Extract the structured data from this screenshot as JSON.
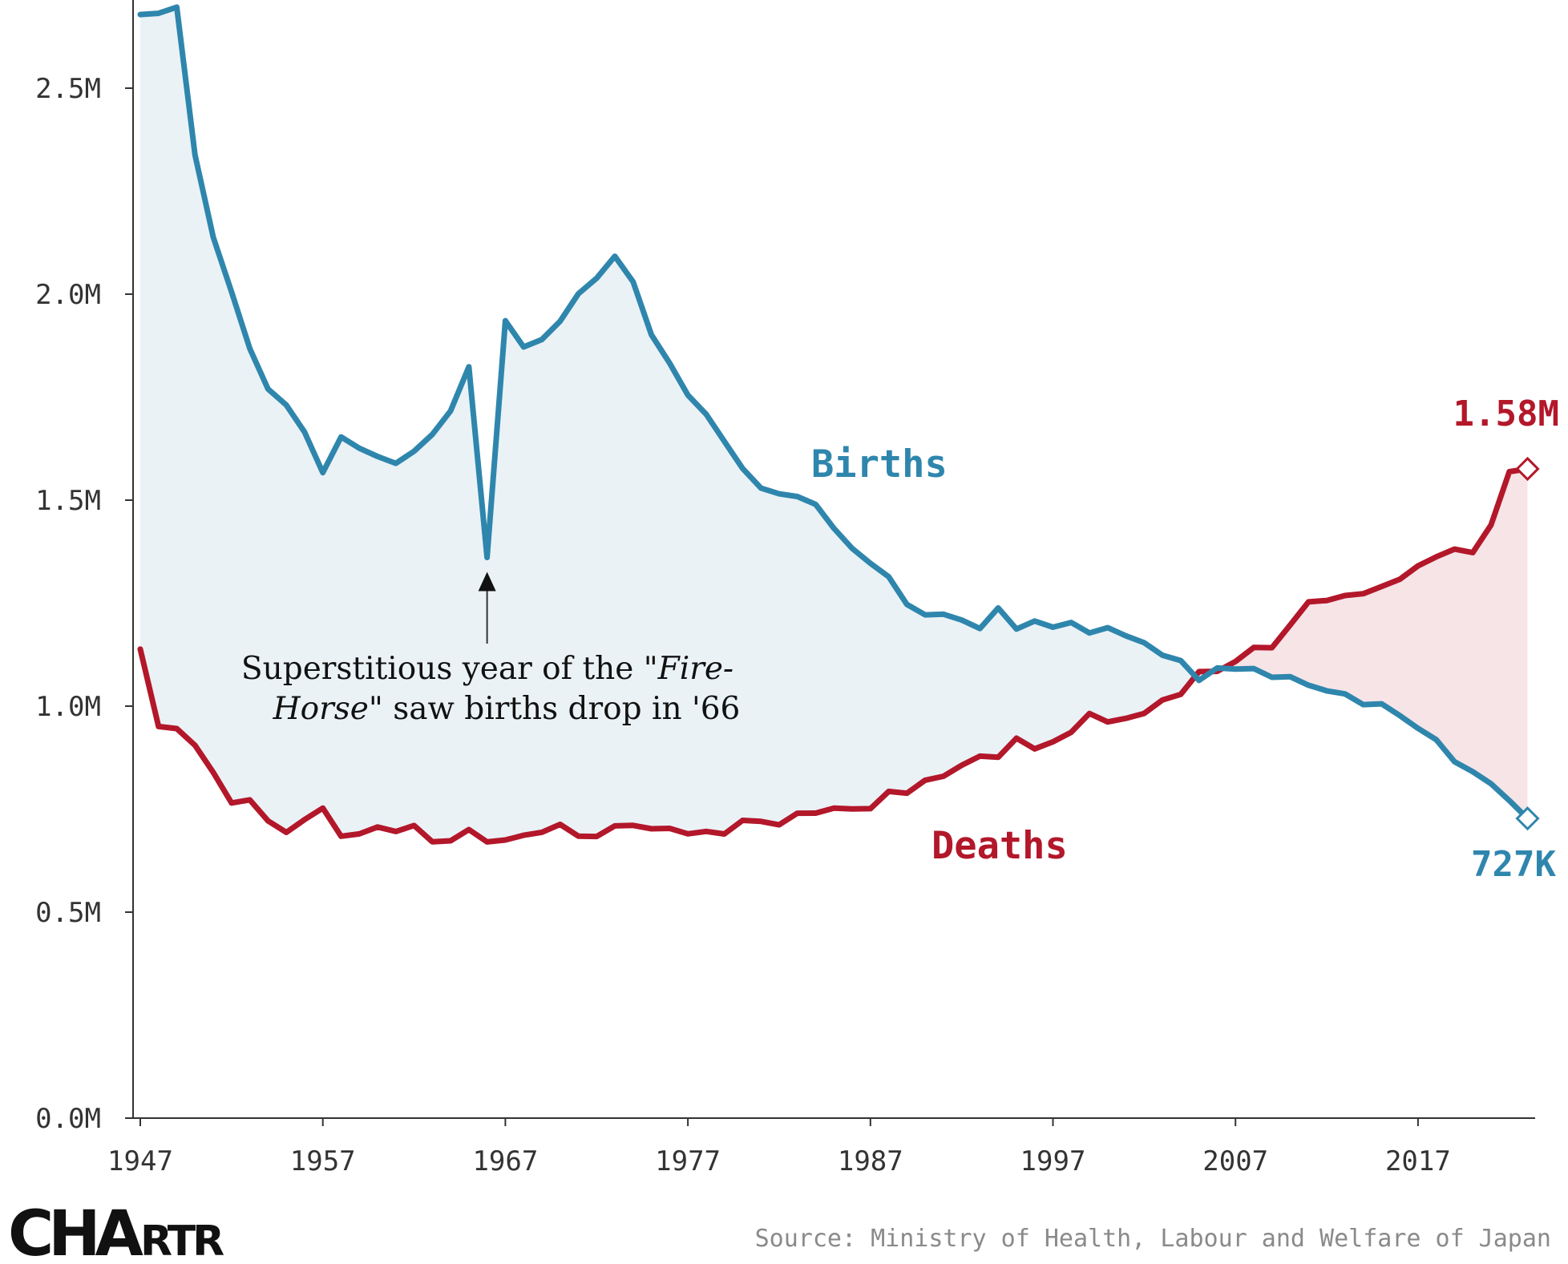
{
  "chart_data": {
    "type": "line",
    "title": "",
    "xlabel": "",
    "ylabel": "",
    "xlim": [
      1947,
      2023
    ],
    "ylim": [
      0,
      2700000
    ],
    "grid": false,
    "x_ticks": [
      1947,
      1957,
      1967,
      1977,
      1987,
      1997,
      2007,
      2017
    ],
    "x_tick_labels": [
      "1947",
      "1957",
      "1967",
      "1977",
      "1987",
      "1997",
      "2007",
      "2017"
    ],
    "y_ticks": [
      0,
      500000,
      1000000,
      1500000,
      2000000,
      2500000
    ],
    "y_tick_labels": [
      "0.0M",
      "0.5M",
      "1.0M",
      "1.5M",
      "2.0M",
      "2.5M"
    ],
    "x": [
      1947,
      1948,
      1949,
      1950,
      1951,
      1952,
      1953,
      1954,
      1955,
      1956,
      1957,
      1958,
      1959,
      1960,
      1961,
      1962,
      1963,
      1964,
      1965,
      1966,
      1967,
      1968,
      1969,
      1970,
      1971,
      1972,
      1973,
      1974,
      1975,
      1976,
      1977,
      1978,
      1979,
      1980,
      1981,
      1982,
      1983,
      1984,
      1985,
      1986,
      1987,
      1988,
      1989,
      1990,
      1991,
      1992,
      1993,
      1994,
      1995,
      1996,
      1997,
      1998,
      1999,
      2000,
      2001,
      2002,
      2003,
      2004,
      2005,
      2006,
      2007,
      2008,
      2009,
      2010,
      2011,
      2012,
      2013,
      2014,
      2015,
      2016,
      2017,
      2018,
      2019,
      2020,
      2021,
      2022,
      2023
    ],
    "series": [
      {
        "name": "Births",
        "color": "#2f86ad",
        "fill": "#eaf2f6",
        "values": [
          2678792,
          2681624,
          2696638,
          2337507,
          2137689,
          2005162,
          1868040,
          1769580,
          1730692,
          1665278,
          1566713,
          1653469,
          1626088,
          1606041,
          1589372,
          1618616,
          1659521,
          1716761,
          1823697,
          1360974,
          1935647,
          1871839,
          1889815,
          1934239,
          2000973,
          2038682,
          2091983,
          2029989,
          1901440,
          1832617,
          1755100,
          1708643,
          1642580,
          1576889,
          1529455,
          1515392,
          1508687,
          1489780,
          1431577,
          1382946,
          1346658,
          1314006,
          1246802,
          1221585,
          1223245,
          1208989,
          1188282,
          1238328,
          1187064,
          1206555,
          1191665,
          1203147,
          1177669,
          1190547,
          1170662,
          1153855,
          1123610,
          1110721,
          1062530,
          1092674,
          1089818,
          1091156,
          1070036,
          1071305,
          1050807,
          1037232,
          1029817,
          1003609,
          1005721,
          977242,
          946146,
          918400,
          865239,
          840835,
          811622,
          770759,
          727277
        ]
      },
      {
        "name": "Deaths",
        "color": "#b3172a",
        "fill": "#f6e4e7",
        "values": [
          1138238,
          950610,
          945444,
          904876,
          838998,
          765068,
          772547,
          721491,
          693523,
          724460,
          752445,
          684189,
          689959,
          706599,
          695644,
          710265,
          670770,
          673067,
          700438,
          670342,
          675006,
          686555,
          693787,
          712962,
          684521,
          683751,
          709416,
          710510,
          702275,
          703270,
          690074,
          695821,
          689664,
          722801,
          720262,
          711883,
          740038,
          740247,
          752283,
          750620,
          751172,
          793014,
          788594,
          820305,
          829797,
          856643,
          878532,
          875933,
          922139,
          896211,
          913402,
          936484,
          982031,
          961653,
          970331,
          982379,
          1014951,
          1028602,
          1083796,
          1084450,
          1108334,
          1142407,
          1141865,
          1197012,
          1253066,
          1256359,
          1268436,
          1273025,
          1290444,
          1307748,
          1340397,
          1362470,
          1381093,
          1372755,
          1439856,
          1569050,
          1575936
        ]
      }
    ],
    "series_labels": {
      "births": "Births",
      "deaths": "Deaths"
    },
    "end_labels": {
      "births": "727K",
      "deaths": "1.58M"
    },
    "annotation": {
      "year": 1966,
      "line1_pre": "Superstitious year of the \"",
      "line1_italic": "Fire-",
      "line2_italic": "Horse",
      "line2_post": "\" saw births drop in '66"
    }
  },
  "source": "Source: Ministry of Health, Labour and Welfare of Japan",
  "logo": {
    "part1": "CHA",
    "part2": "RTR"
  }
}
